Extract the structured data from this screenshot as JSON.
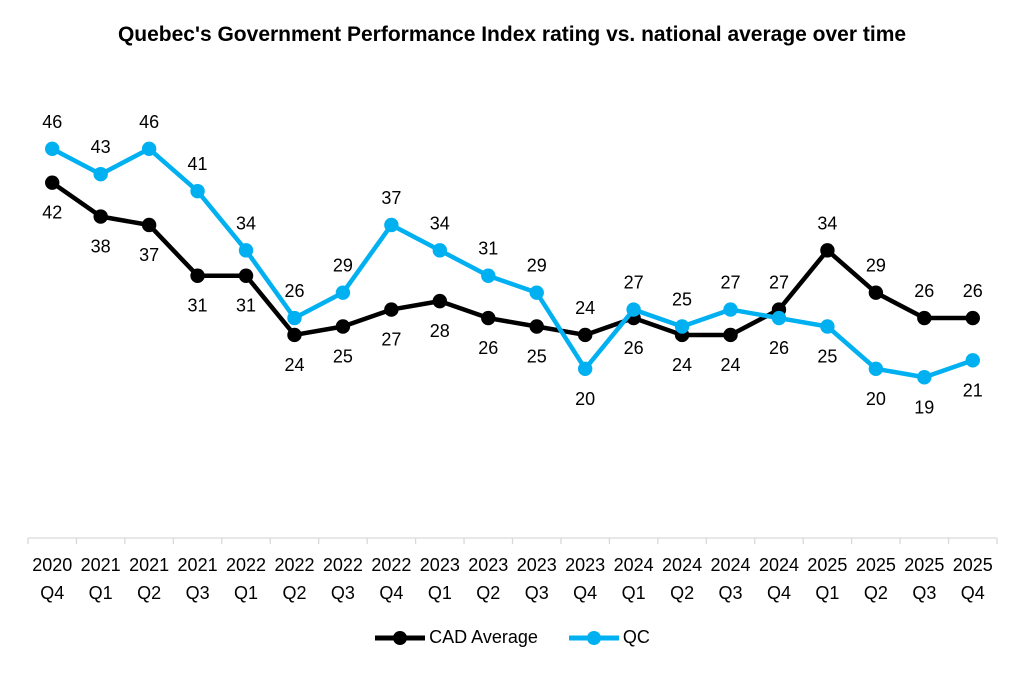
{
  "chart_data": {
    "type": "line",
    "title": "Quebec's Government Performance Index rating vs. national average over time",
    "categories": [
      "2020 Q4",
      "2021 Q1",
      "2021 Q2",
      "2021 Q3",
      "2022 Q1",
      "2022 Q2",
      "2022 Q3",
      "2022 Q4",
      "2023 Q1",
      "2023 Q2",
      "2023 Q3",
      "2023 Q4",
      "2024 Q1",
      "2024 Q2",
      "2024 Q3",
      "2024 Q4",
      "2025 Q1",
      "2025 Q2",
      "2025 Q3",
      "2025 Q4"
    ],
    "series": [
      {
        "name": "CAD Average",
        "color": "#000000",
        "values": [
          42,
          38,
          37,
          31,
          31,
          24,
          25,
          27,
          28,
          26,
          25,
          24,
          26,
          24,
          24,
          27,
          34,
          29,
          26,
          26
        ]
      },
      {
        "name": "QC",
        "color": "#00B0F0",
        "values": [
          46,
          43,
          46,
          41,
          34,
          26,
          29,
          37,
          34,
          31,
          29,
          20,
          27,
          25,
          27,
          26,
          25,
          20,
          19,
          21
        ]
      }
    ],
    "ylim": [
      0,
      50
    ],
    "grid": false,
    "data_labels": true,
    "legend_position": "bottom",
    "axis_color": "#D9D9D9",
    "label_color": "#000000",
    "background_color": "#ffffff"
  }
}
